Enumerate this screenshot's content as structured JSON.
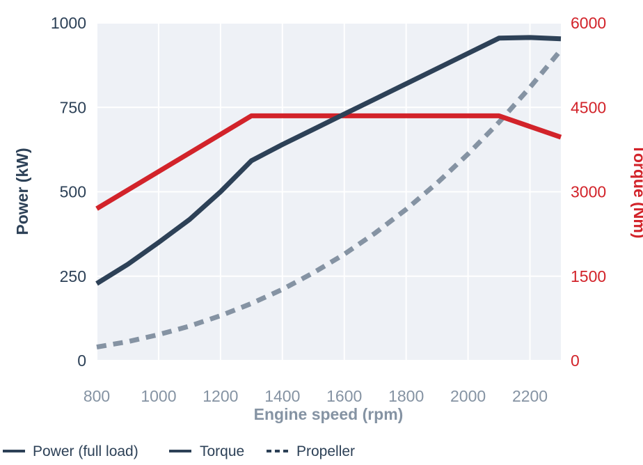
{
  "chart_data": {
    "type": "line",
    "xlabel": "Engine speed (rpm)",
    "ylabel_left": "Power (kW)",
    "ylabel_right": "Torque (Nm)",
    "xlim": [
      800,
      2300
    ],
    "ylim_left": [
      0,
      1000
    ],
    "ylim_right": [
      0,
      6000
    ],
    "x_ticks": [
      "800",
      "1000",
      "1200",
      "1400",
      "1600",
      "1800",
      "2000",
      "2200"
    ],
    "y_ticks_left": [
      "0",
      "250",
      "500",
      "750",
      "1000"
    ],
    "y_ticks_right": [
      "0",
      "1500",
      "3000",
      "4500",
      "6000"
    ],
    "grid": true,
    "legend_placement": "bottom",
    "series": [
      {
        "name": "Power (full load)",
        "axis": "left",
        "color": "#2d4157",
        "style": "solid",
        "points": [
          [
            800,
            228
          ],
          [
            900,
            285
          ],
          [
            1000,
            350
          ],
          [
            1100,
            418
          ],
          [
            1200,
            500
          ],
          [
            1300,
            592
          ],
          [
            1400,
            640
          ],
          [
            1500,
            685
          ],
          [
            1600,
            730
          ],
          [
            1700,
            775
          ],
          [
            1800,
            820
          ],
          [
            1900,
            865
          ],
          [
            2000,
            910
          ],
          [
            2100,
            955
          ],
          [
            2200,
            957
          ],
          [
            2300,
            953
          ]
        ]
      },
      {
        "name": "Torque",
        "axis": "right",
        "color": "#d2232a",
        "style": "solid",
        "points": [
          [
            800,
            2700
          ],
          [
            1300,
            4350
          ],
          [
            2100,
            4350
          ],
          [
            2300,
            3970
          ]
        ]
      },
      {
        "name": "Propeller",
        "axis": "left",
        "color": "#8593a3",
        "style": "dashed",
        "points": [
          [
            800,
            40
          ],
          [
            900,
            56
          ],
          [
            1000,
            77
          ],
          [
            1100,
            102
          ],
          [
            1200,
            133
          ],
          [
            1300,
            169
          ],
          [
            1400,
            211
          ],
          [
            1500,
            260
          ],
          [
            1600,
            315
          ],
          [
            1700,
            378
          ],
          [
            1800,
            448
          ],
          [
            1900,
            526
          ],
          [
            2000,
            612
          ],
          [
            2100,
            706
          ],
          [
            2200,
            809
          ],
          [
            2300,
            920
          ]
        ]
      }
    ]
  },
  "colors": {
    "plot_background": "#eef1f6",
    "grid": "#ffffff",
    "power": "#2d4157",
    "torque": "#d2232a",
    "propeller": "#8593a3"
  }
}
